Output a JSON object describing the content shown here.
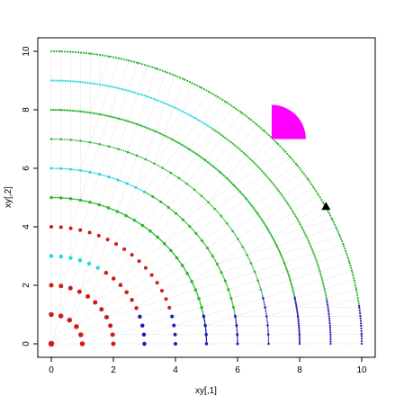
{
  "chart_data": {
    "type": "scatter",
    "title": "",
    "xlabel": "xy[,1]",
    "ylabel": "xy[,2]",
    "xlim": [
      0,
      10
    ],
    "ylim": [
      0,
      10
    ],
    "x_ticks": [
      0,
      2,
      4,
      6,
      8,
      10
    ],
    "y_ticks": [
      0,
      2,
      4,
      6,
      8,
      10
    ],
    "x_tick_labels": [
      "0",
      "2",
      "4",
      "6",
      "8",
      "10"
    ],
    "y_tick_labels": [
      "0",
      "2",
      "4",
      "6",
      "8",
      "10"
    ],
    "grid": false,
    "legend": "none",
    "description_series": "points on concentric quarter circles of radius 0..10; spokes drawn light grey",
    "radii": [
      0,
      1,
      2,
      3,
      4,
      5,
      6,
      7,
      8,
      9,
      10
    ],
    "points_per_radius": [
      1,
      6,
      11,
      16,
      21,
      26,
      31,
      36,
      41,
      46,
      51
    ],
    "color_bands": [
      {
        "radius": 1,
        "angles_deg": [
          0,
          90
        ],
        "color": "#d11a1a"
      },
      {
        "radius": 2,
        "angles_deg": [
          0,
          90
        ],
        "color": "#d11a1a"
      },
      {
        "radius": 3,
        "angles_deg": [
          0,
          20
        ],
        "color": "#1c1cb8"
      },
      {
        "radius": 3,
        "angles_deg": [
          20,
          55
        ],
        "color": "#d11a1a"
      },
      {
        "radius": 3,
        "angles_deg": [
          55,
          90
        ],
        "color": "#2ad6e0"
      },
      {
        "radius": 4,
        "angles_deg": [
          0,
          15
        ],
        "color": "#1c1cb8"
      },
      {
        "radius": 4,
        "angles_deg": [
          15,
          45
        ],
        "color": "#d11a1a"
      },
      {
        "radius": 4,
        "angles_deg": [
          45,
          90
        ],
        "color": "#d11a1a"
      },
      {
        "radius": 5,
        "angles_deg": [
          0,
          12
        ],
        "color": "#1c1cb8"
      },
      {
        "radius": 5,
        "angles_deg": [
          12,
          90
        ],
        "color": "#2fb52f"
      },
      {
        "radius": 6,
        "angles_deg": [
          0,
          10
        ],
        "color": "#1c1cb8"
      },
      {
        "radius": 6,
        "angles_deg": [
          10,
          60
        ],
        "color": "#2fb52f"
      },
      {
        "radius": 6,
        "angles_deg": [
          60,
          90
        ],
        "color": "#2ad6e0"
      },
      {
        "radius": 7,
        "angles_deg": [
          0,
          14
        ],
        "color": "#1c1cb8"
      },
      {
        "radius": 7,
        "angles_deg": [
          14,
          90
        ],
        "color": "#2fb52f"
      },
      {
        "radius": 8,
        "angles_deg": [
          0,
          12
        ],
        "color": "#1c1cb8"
      },
      {
        "radius": 8,
        "angles_deg": [
          12,
          90
        ],
        "color": "#2fb52f"
      },
      {
        "radius": 9,
        "angles_deg": [
          0,
          10
        ],
        "color": "#1c1cb8"
      },
      {
        "radius": 9,
        "angles_deg": [
          10,
          55
        ],
        "color": "#2fb52f"
      },
      {
        "radius": 9,
        "angles_deg": [
          55,
          90
        ],
        "color": "#2ad6e0"
      },
      {
        "radius": 10,
        "angles_deg": [
          0,
          8
        ],
        "color": "#1c1cb8"
      },
      {
        "radius": 10,
        "angles_deg": [
          8,
          90
        ],
        "color": "#2fb52f"
      }
    ],
    "spoke_color": "#c8c8c8",
    "shapes": [
      {
        "kind": "quarter-disc",
        "center": [
          7.1,
          7.0
        ],
        "radius": 1.1,
        "color": "#ff00ff"
      },
      {
        "kind": "triangle",
        "at": [
          8.85,
          4.7
        ],
        "color": "#000000"
      }
    ]
  }
}
